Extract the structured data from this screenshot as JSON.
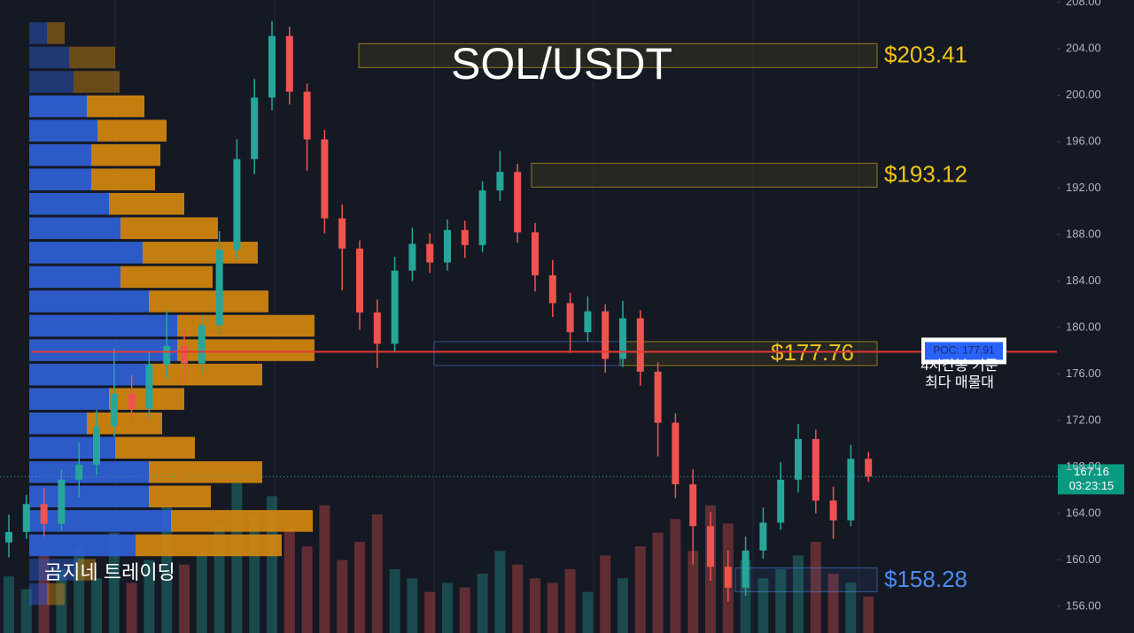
{
  "chart_data": {
    "type": "candlestick",
    "title": "SOL/USDT",
    "watermark": "곰지네 트레이딩",
    "ylim": [
      153.7,
      208.2
    ],
    "yticks": [
      {
        "value": 156,
        "label": "156.00"
      },
      {
        "value": 160,
        "label": "160.00"
      },
      {
        "value": 164,
        "label": "164.00"
      },
      {
        "value": 168,
        "label": "168.00"
      },
      {
        "value": 172,
        "label": "172.00"
      },
      {
        "value": 176,
        "label": "176.00"
      },
      {
        "value": 180,
        "label": "180.00"
      },
      {
        "value": 184,
        "label": "184.00"
      },
      {
        "value": 188,
        "label": "188.00"
      },
      {
        "value": 192,
        "label": "192.00"
      },
      {
        "value": 196,
        "label": "196.00"
      },
      {
        "value": 200,
        "label": "200.00"
      },
      {
        "value": 204,
        "label": "204.00"
      },
      {
        "value": 208,
        "label": "208.00"
      }
    ],
    "up_color": "#26a69a",
    "down_color": "#ef5350",
    "open": [
      161.5,
      162.4,
      164.8,
      163.1,
      166.9,
      168.2,
      171.5,
      174.3,
      173.0,
      176.8,
      178.4,
      176.9,
      180.2,
      186.7,
      194.5,
      199.8,
      205.1,
      200.3,
      196.2,
      189.4,
      186.8,
      181.3,
      178.6,
      184.9,
      187.2,
      185.6,
      188.4,
      187.1,
      191.8,
      193.4,
      188.2,
      184.5,
      182.1,
      179.6,
      181.4,
      177.3,
      180.8,
      176.2,
      171.8,
      166.5,
      162.9,
      159.4,
      157.6,
      160.8,
      163.2,
      166.9,
      170.4,
      165.1,
      163.4,
      168.7
    ],
    "high": [
      163.9,
      165.6,
      166.2,
      167.8,
      170.1,
      172.9,
      178.2,
      175.9,
      178.0,
      181.5,
      179.8,
      181.1,
      188.3,
      196.2,
      201.4,
      206.4,
      205.9,
      201.0,
      197.0,
      190.6,
      187.5,
      182.4,
      186.1,
      188.6,
      188.1,
      189.3,
      189.2,
      192.6,
      195.2,
      194.1,
      189.0,
      185.8,
      183.0,
      182.7,
      182.0,
      182.3,
      181.5,
      177.0,
      172.6,
      167.8,
      164.1,
      160.8,
      162.0,
      164.5,
      168.4,
      171.7,
      171.2,
      166.3,
      169.9,
      169.3
    ],
    "low": [
      160.2,
      161.8,
      162.0,
      162.5,
      165.4,
      167.3,
      170.6,
      171.8,
      172.1,
      175.6,
      175.2,
      176.0,
      179.4,
      185.8,
      193.2,
      198.7,
      199.2,
      193.5,
      188.1,
      183.2,
      179.8,
      176.5,
      177.9,
      184.0,
      184.7,
      184.9,
      186.0,
      186.5,
      190.9,
      187.3,
      183.1,
      180.9,
      177.8,
      178.8,
      176.1,
      176.6,
      175.0,
      168.9,
      165.3,
      159.6,
      158.2,
      156.4,
      156.9,
      160.1,
      162.6,
      165.8,
      164.0,
      161.8,
      162.9,
      166.7
    ],
    "close": [
      162.4,
      164.8,
      163.1,
      166.9,
      168.2,
      171.5,
      174.3,
      173.0,
      176.8,
      178.4,
      176.9,
      180.2,
      186.7,
      194.5,
      199.8,
      205.1,
      200.3,
      196.2,
      189.4,
      186.8,
      181.3,
      178.6,
      184.9,
      187.2,
      185.6,
      188.4,
      187.1,
      191.8,
      193.4,
      188.2,
      184.5,
      182.1,
      179.6,
      181.4,
      177.3,
      180.8,
      176.2,
      171.8,
      166.5,
      162.9,
      159.4,
      157.6,
      160.8,
      163.2,
      166.9,
      170.4,
      165.1,
      163.4,
      168.7,
      167.16
    ],
    "volume": [
      62,
      48,
      85,
      70,
      95,
      60,
      110,
      55,
      80,
      140,
      75,
      90,
      120,
      165,
      130,
      150,
      115,
      95,
      140,
      80,
      100,
      130,
      70,
      60,
      45,
      55,
      50,
      65,
      90,
      75,
      60,
      55,
      70,
      45,
      85,
      60,
      95,
      110,
      125,
      90,
      140,
      120,
      80,
      60,
      70,
      85,
      100,
      65,
      55,
      40
    ],
    "volume_profile": {
      "bins": [
        156.0,
        158.1,
        160.2,
        162.3,
        164.4,
        166.5,
        168.6,
        170.7,
        172.8,
        174.9,
        177.0,
        179.1,
        181.2,
        183.3,
        185.4,
        187.5,
        189.6,
        191.7,
        193.8,
        195.9,
        198.0,
        200.1,
        202.2,
        204.3,
        206.4
      ],
      "buy": [
        20,
        55,
        120,
        160,
        135,
        135,
        97,
        65,
        90,
        135,
        167,
        167,
        135,
        103,
        128,
        103,
        90,
        70,
        70,
        77,
        65,
        50,
        45,
        20
      ],
      "sell": [
        20,
        20,
        165,
        160,
        70,
        128,
        90,
        85,
        85,
        128,
        155,
        155,
        135,
        104,
        130,
        110,
        85,
        72,
        78,
        78,
        65,
        52,
        52,
        20
      ],
      "buy_color": "#2f5fd6",
      "sell_color": "#d4870f"
    },
    "levels": [
      {
        "value": 203.41,
        "label": "$203.41",
        "color": "#f0c419"
      },
      {
        "value": 193.12,
        "label": "$193.12",
        "color": "#f0c419"
      },
      {
        "value": 177.76,
        "label": "$177.76",
        "color": "#f0c419"
      },
      {
        "value": 158.28,
        "label": "$158.28",
        "color": "#4b8cf0"
      }
    ],
    "poc": {
      "value": 177.91,
      "label": "POC: 177.91",
      "color": "#e53935"
    },
    "poc_note": [
      "4시간봉 기준",
      "최다 매물대"
    ],
    "last_price": 167.16,
    "countdown": "03:23:15"
  }
}
